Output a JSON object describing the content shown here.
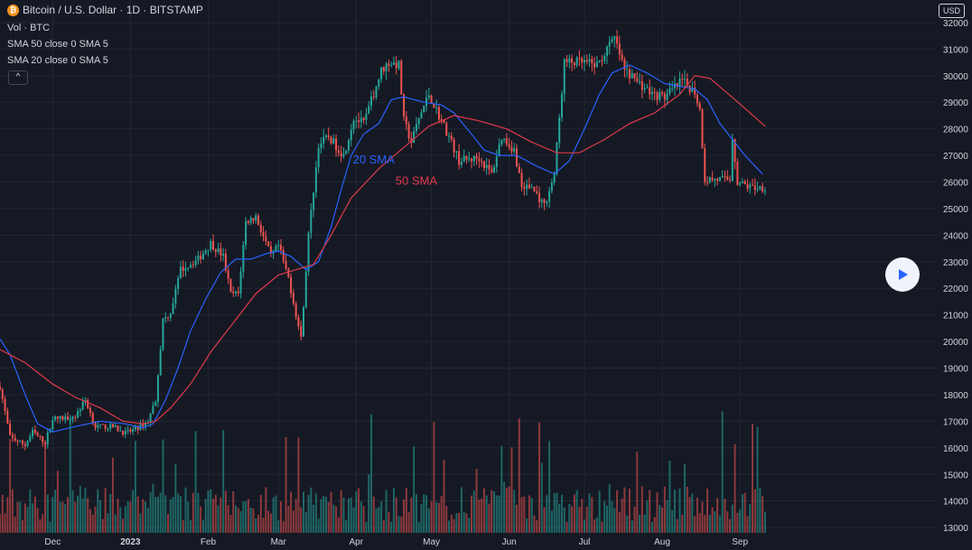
{
  "header": {
    "title": "Bitcoin / U.S. Dollar · 1D · BITSTAMP",
    "volume_label": "Vol · BTC",
    "sma50_label": "SMA 50 close 0 SMA 5",
    "sma20_label": "SMA 20 close 0 SMA 5",
    "collapse_glyph": "^"
  },
  "currency_button": "USD",
  "colors": {
    "background": "#151924",
    "up": "#26a69a",
    "down": "#ef5350",
    "sma20": "#2962ff",
    "sma50": "#e03a4a",
    "text": "#d1d4dc"
  },
  "chart_data": {
    "type": "candlestick",
    "title": "Bitcoin / U.S. Dollar · 1D · BITSTAMP",
    "y_axis": {
      "ticks": [
        13000,
        14000,
        15000,
        16000,
        17000,
        18000,
        19000,
        20000,
        21000,
        22000,
        23000,
        24000,
        25000,
        26000,
        27000,
        28000,
        29000,
        30000,
        31000,
        32000
      ],
      "range": [
        12800,
        32100
      ],
      "side": "right"
    },
    "x_axis": {
      "ticks": [
        {
          "label": "Dec",
          "date": "2022-12-01"
        },
        {
          "label": "2023",
          "date": "2023-01-01"
        },
        {
          "label": "Feb",
          "date": "2023-02-01"
        },
        {
          "label": "Mar",
          "date": "2023-03-01"
        },
        {
          "label": "Apr",
          "date": "2023-04-01"
        },
        {
          "label": "May",
          "date": "2023-05-01"
        },
        {
          "label": "Jun",
          "date": "2023-06-01"
        },
        {
          "label": "Jul",
          "date": "2023-07-01"
        },
        {
          "label": "Aug",
          "date": "2023-08-01"
        },
        {
          "label": "Sep",
          "date": "2023-09-01"
        }
      ],
      "range": [
        "2022-11-10",
        "2023-09-15"
      ]
    },
    "grid": true,
    "price_path": [
      [
        "2022-11-10",
        18300
      ],
      [
        "2022-11-14",
        16400
      ],
      [
        "2022-11-20",
        16100
      ],
      [
        "2022-11-23",
        16600
      ],
      [
        "2022-11-28",
        16200
      ],
      [
        "2022-12-01",
        17100
      ],
      [
        "2022-12-05",
        17100
      ],
      [
        "2022-12-10",
        17200
      ],
      [
        "2022-12-14",
        17800
      ],
      [
        "2022-12-18",
        16800
      ],
      [
        "2022-12-25",
        16800
      ],
      [
        "2022-12-30",
        16550
      ],
      [
        "2023-01-03",
        16700
      ],
      [
        "2023-01-08",
        17000
      ],
      [
        "2023-01-11",
        17800
      ],
      [
        "2023-01-14",
        20800
      ],
      [
        "2023-01-17",
        21100
      ],
      [
        "2023-01-21",
        22700
      ],
      [
        "2023-01-28",
        23100
      ],
      [
        "2023-02-02",
        23700
      ],
      [
        "2023-02-07",
        23200
      ],
      [
        "2023-02-10",
        21800
      ],
      [
        "2023-02-13",
        21800
      ],
      [
        "2023-02-16",
        24500
      ],
      [
        "2023-02-20",
        24700
      ],
      [
        "2023-02-26",
        23200
      ],
      [
        "2023-03-01",
        23600
      ],
      [
        "2023-03-05",
        22400
      ],
      [
        "2023-03-10",
        20100
      ],
      [
        "2023-03-13",
        24000
      ],
      [
        "2023-03-17",
        27400
      ],
      [
        "2023-03-21",
        27700
      ],
      [
        "2023-03-27",
        27000
      ],
      [
        "2023-03-31",
        28400
      ],
      [
        "2023-04-04",
        28200
      ],
      [
        "2023-04-11",
        30200
      ],
      [
        "2023-04-14",
        30500
      ],
      [
        "2023-04-18",
        30400
      ],
      [
        "2023-04-20",
        28300
      ],
      [
        "2023-04-23",
        27500
      ],
      [
        "2023-04-26",
        28400
      ],
      [
        "2023-04-30",
        29300
      ],
      [
        "2023-05-03",
        28700
      ],
      [
        "2023-05-08",
        27700
      ],
      [
        "2023-05-12",
        26800
      ],
      [
        "2023-05-20",
        26900
      ],
      [
        "2023-05-25",
        26300
      ],
      [
        "2023-05-29",
        27700
      ],
      [
        "2023-06-03",
        27200
      ],
      [
        "2023-06-06",
        25800
      ],
      [
        "2023-06-10",
        25800
      ],
      [
        "2023-06-15",
        25100
      ],
      [
        "2023-06-19",
        26300
      ],
      [
        "2023-06-21",
        28400
      ],
      [
        "2023-06-23",
        30500
      ],
      [
        "2023-06-30",
        30500
      ],
      [
        "2023-07-06",
        30400
      ],
      [
        "2023-07-13",
        31400
      ],
      [
        "2023-07-17",
        30200
      ],
      [
        "2023-07-22",
        29800
      ],
      [
        "2023-07-28",
        29300
      ],
      [
        "2023-08-02",
        29200
      ],
      [
        "2023-08-09",
        29800
      ],
      [
        "2023-08-14",
        29400
      ],
      [
        "2023-08-16",
        28700
      ],
      [
        "2023-08-18",
        26100
      ],
      [
        "2023-08-24",
        26100
      ],
      [
        "2023-08-28",
        26100
      ],
      [
        "2023-08-29",
        27700
      ],
      [
        "2023-08-31",
        26000
      ],
      [
        "2023-09-05",
        25800
      ],
      [
        "2023-09-11",
        25800
      ]
    ],
    "series": [
      {
        "name": "20 SMA",
        "points": [
          [
            "2022-11-10",
            20100
          ],
          [
            "2022-11-14",
            19500
          ],
          [
            "2022-11-20",
            18000
          ],
          [
            "2022-11-25",
            16900
          ],
          [
            "2022-12-01",
            16600
          ],
          [
            "2022-12-10",
            16800
          ],
          [
            "2022-12-20",
            17000
          ],
          [
            "2022-12-30",
            16900
          ],
          [
            "2023-01-06",
            16750
          ],
          [
            "2023-01-10",
            16900
          ],
          [
            "2023-01-15",
            17800
          ],
          [
            "2023-01-20",
            19000
          ],
          [
            "2023-01-25",
            20400
          ],
          [
            "2023-01-31",
            21600
          ],
          [
            "2023-02-06",
            22600
          ],
          [
            "2023-02-12",
            23100
          ],
          [
            "2023-02-18",
            23100
          ],
          [
            "2023-02-24",
            23300
          ],
          [
            "2023-03-01",
            23400
          ],
          [
            "2023-03-06",
            23200
          ],
          [
            "2023-03-12",
            22700
          ],
          [
            "2023-03-17",
            23000
          ],
          [
            "2023-03-22",
            24300
          ],
          [
            "2023-03-26",
            25700
          ],
          [
            "2023-03-30",
            27000
          ],
          [
            "2023-04-04",
            27800
          ],
          [
            "2023-04-10",
            28200
          ],
          [
            "2023-04-15",
            29100
          ],
          [
            "2023-04-20",
            29200
          ],
          [
            "2023-04-28",
            29000
          ],
          [
            "2023-05-05",
            28900
          ],
          [
            "2023-05-10",
            28600
          ],
          [
            "2023-05-17",
            27800
          ],
          [
            "2023-05-22",
            27200
          ],
          [
            "2023-05-28",
            27000
          ],
          [
            "2023-06-04",
            27000
          ],
          [
            "2023-06-12",
            26600
          ],
          [
            "2023-06-19",
            26300
          ],
          [
            "2023-06-25",
            26800
          ],
          [
            "2023-07-01",
            28000
          ],
          [
            "2023-07-07",
            29300
          ],
          [
            "2023-07-12",
            30100
          ],
          [
            "2023-07-19",
            30400
          ],
          [
            "2023-07-26",
            30100
          ],
          [
            "2023-08-02",
            29700
          ],
          [
            "2023-08-08",
            29600
          ],
          [
            "2023-08-14",
            29500
          ],
          [
            "2023-08-19",
            29100
          ],
          [
            "2023-08-24",
            28200
          ],
          [
            "2023-08-29",
            27600
          ],
          [
            "2023-09-03",
            27000
          ],
          [
            "2023-09-10",
            26300
          ]
        ]
      },
      {
        "name": "50 SMA",
        "points": [
          [
            "2022-11-10",
            19700
          ],
          [
            "2022-11-20",
            19200
          ],
          [
            "2022-12-01",
            18400
          ],
          [
            "2022-12-10",
            17900
          ],
          [
            "2022-12-20",
            17500
          ],
          [
            "2022-12-29",
            17000
          ],
          [
            "2023-01-06",
            16900
          ],
          [
            "2023-01-11",
            17000
          ],
          [
            "2023-01-17",
            17500
          ],
          [
            "2023-01-25",
            18400
          ],
          [
            "2023-02-02",
            19600
          ],
          [
            "2023-02-11",
            20700
          ],
          [
            "2023-02-20",
            21800
          ],
          [
            "2023-03-01",
            22500
          ],
          [
            "2023-03-08",
            22700
          ],
          [
            "2023-03-15",
            22900
          ],
          [
            "2023-03-22",
            24000
          ],
          [
            "2023-03-30",
            25400
          ],
          [
            "2023-04-10",
            26500
          ],
          [
            "2023-04-20",
            27300
          ],
          [
            "2023-04-30",
            28100
          ],
          [
            "2023-05-10",
            28500
          ],
          [
            "2023-05-20",
            28300
          ],
          [
            "2023-05-31",
            28000
          ],
          [
            "2023-06-10",
            27500
          ],
          [
            "2023-06-20",
            27100
          ],
          [
            "2023-06-29",
            27100
          ],
          [
            "2023-07-09",
            27600
          ],
          [
            "2023-07-19",
            28200
          ],
          [
            "2023-07-29",
            28600
          ],
          [
            "2023-08-08",
            29300
          ],
          [
            "2023-08-14",
            30000
          ],
          [
            "2023-08-20",
            29900
          ],
          [
            "2023-08-30",
            29100
          ],
          [
            "2023-09-11",
            28100
          ]
        ]
      }
    ],
    "annotations": [
      {
        "text": "20 SMA",
        "color": "#2962ff",
        "date": "2023-04-08",
        "price": 26700
      },
      {
        "text": "50 SMA",
        "color": "#e03a4a",
        "date": "2023-04-25",
        "price": 25900
      }
    ],
    "volume": {
      "label": "Vol · BTC"
    }
  }
}
